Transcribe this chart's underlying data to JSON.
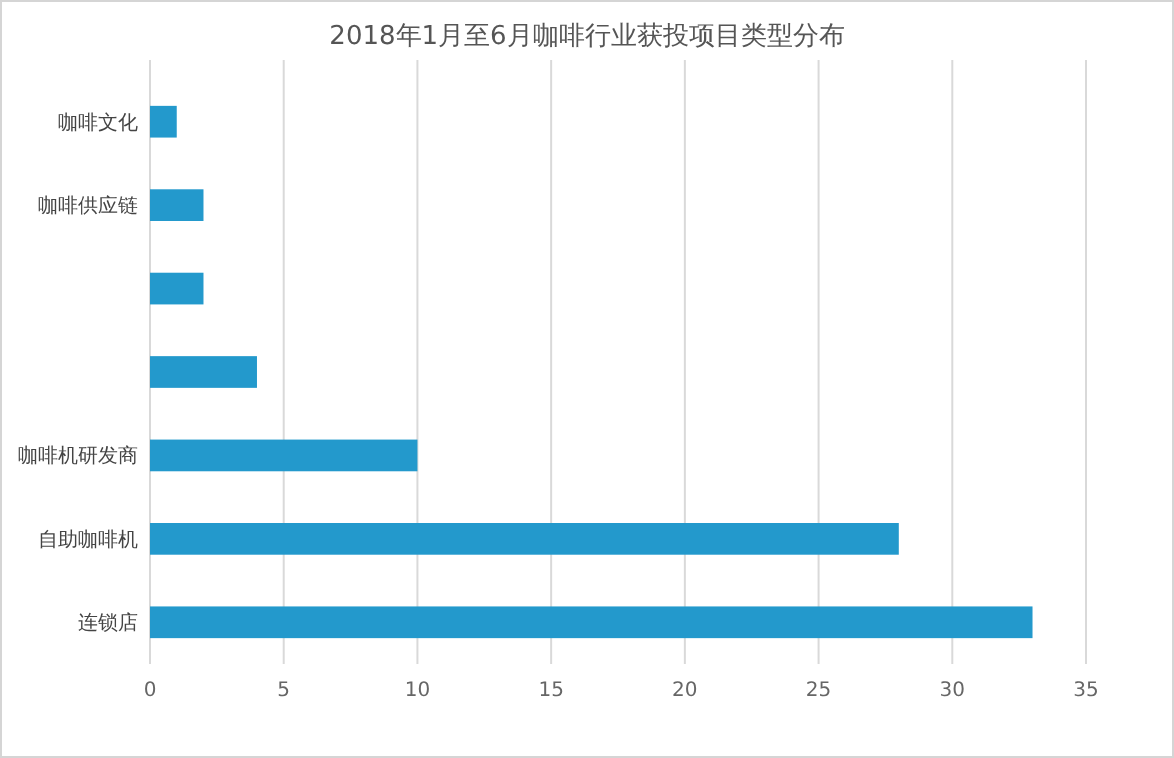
{
  "chart_data": {
    "type": "bar",
    "title": "2018年1月至6月咖啡行业获投项目类型分布",
    "orientation": "horizontal",
    "categories": [
      "咖啡文化",
      "咖啡供应链",
      null,
      null,
      "咖啡机研发商",
      "自助咖啡机",
      "连锁店"
    ],
    "values": [
      1,
      2,
      2,
      4,
      10,
      28,
      33
    ],
    "color": "#2399cc",
    "xlim": [
      0,
      35
    ],
    "xticks": [
      0,
      5,
      10,
      15,
      20,
      25,
      30,
      35
    ],
    "grid": "x"
  }
}
